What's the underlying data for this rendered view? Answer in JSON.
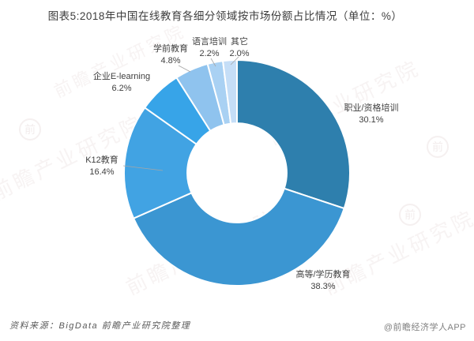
{
  "chart_data": {
    "type": "pie",
    "subtype": "donut",
    "title": "图表5:2018年中国在线教育各细分领域按市场份额占比情况（单位：%）",
    "unit": "%",
    "start_angle_deg": 0,
    "direction": "clockwise",
    "inner_radius_ratio": 0.44,
    "legend_position": "none",
    "slices": [
      {
        "name": "职业/资格培训",
        "value": 30.1,
        "pct_label": "30.1%",
        "color": "#2E7FAD"
      },
      {
        "name": "高等/学历教育",
        "value": 38.3,
        "pct_label": "38.3%",
        "color": "#3B96D2"
      },
      {
        "name": "K12教育",
        "value": 16.4,
        "pct_label": "16.4%",
        "color": "#41A3E3"
      },
      {
        "name": "企业E-learning",
        "value": 6.2,
        "pct_label": "6.2%",
        "color": "#37A4E8"
      },
      {
        "name": "学前教育",
        "value": 4.8,
        "pct_label": "4.8%",
        "color": "#8FC3EE"
      },
      {
        "name": "语言培训",
        "value": 2.2,
        "pct_label": "2.2%",
        "color": "#A9D1F3"
      },
      {
        "name": "其它",
        "value": 2.0,
        "pct_label": "2.0%",
        "color": "#C5DEF7"
      }
    ]
  },
  "footer": {
    "source": "资料来源：BigData 前瞻产业研究院整理",
    "credit": "@前瞻经济学人APP"
  },
  "watermark": {
    "text": "前瞻产业研究院",
    "logo_glyph": "前"
  }
}
